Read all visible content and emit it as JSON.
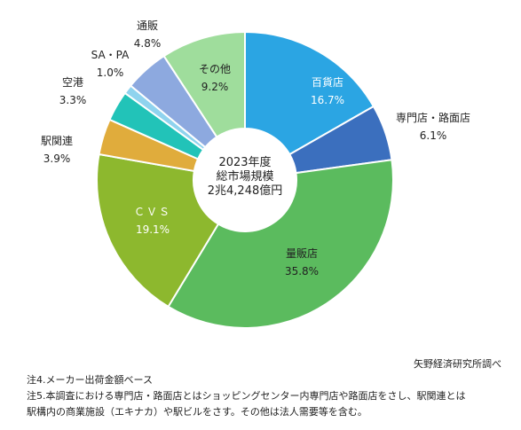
{
  "chart_data": {
    "type": "pie",
    "center_text": [
      "2023年度",
      "総市場規模",
      "2兆4,248億円"
    ],
    "slices": [
      {
        "label": "百貨店",
        "value": 16.7,
        "value_text": "16.7%",
        "color": "#2BA5E3",
        "label_color": "#ffffff"
      },
      {
        "label": "専門店・路面店",
        "value": 6.1,
        "value_text": "6.1%",
        "color": "#3B6FBE",
        "label_color": "#222222"
      },
      {
        "label": "量販店",
        "value": 35.8,
        "value_text": "35.8%",
        "color": "#5BBB5E",
        "label_color": "#222222"
      },
      {
        "label": "ＣＶＳ",
        "value": 19.1,
        "value_text": "19.1%",
        "color": "#8DB82E",
        "label_color": "#ffffff"
      },
      {
        "label": "駅関連",
        "value": 3.9,
        "value_text": "3.9%",
        "color": "#E0AC3C",
        "label_color": "#222222"
      },
      {
        "label": "空港",
        "value": 3.3,
        "value_text": "3.3%",
        "color": "#22C3B8",
        "label_color": "#222222"
      },
      {
        "label": "SA・PA",
        "value": 1.0,
        "value_text": "1.0%",
        "color": "#8FD3EE",
        "label_color": "#222222"
      },
      {
        "label": "通販",
        "value": 4.8,
        "value_text": "4.8%",
        "color": "#8DA9DF",
        "label_color": "#222222"
      },
      {
        "label": "その他",
        "value": 9.2,
        "value_text": "9.2%",
        "color": "#9FDD9C",
        "label_color": "#222222"
      }
    ]
  },
  "source": "矢野経済研究所調べ",
  "notes": [
    "注4.メーカー出荷金額ベース",
    "注5.本調査における専門店・路面店とはショッピングセンター内専門店や路面店をさし、駅関連とは",
    "駅構内の商業施設（エキナカ）や駅ビルをさす。その他は法人需要等を含む。"
  ]
}
